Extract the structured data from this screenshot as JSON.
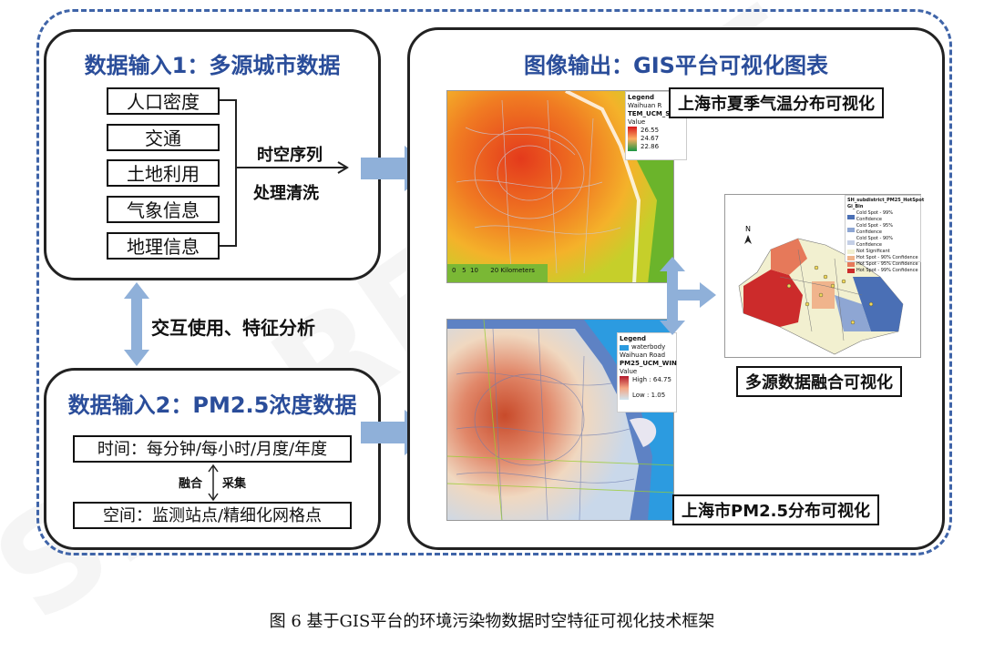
{
  "watermark": "SFC REPORT",
  "left_top": {
    "title": "数据输入1：多源城市数据",
    "items": [
      "人口密度",
      "交通",
      "土地利用",
      "气象信息",
      "地理信息"
    ],
    "process_line1": "时空序列",
    "process_line2": "处理清洗"
  },
  "interaction_label": "交互使用、特征分析",
  "left_bottom": {
    "title": "数据输入2：PM2.5浓度数据",
    "time_box": "时间：每分钟/每小时/月度/年度",
    "fuse_label": "融合",
    "collect_label": "采集",
    "space_box": "空间：监测站点/精细化网格点"
  },
  "right": {
    "title": "图像输出：GIS平台可视化图表",
    "temp_caption": "上海市夏季气温分布可视化",
    "fusion_caption": "多源数据融合可视化",
    "pm_caption": "上海市PM2.5分布可视化",
    "temp_map": {
      "legend_title": "Legend",
      "legend_road": "Waihuan R",
      "layer_name": "TEM_UCM_Su",
      "value_label": "Value",
      "values": [
        "26.55",
        "24.67",
        "22.86"
      ],
      "scale": "0   5  10      20 Kilometers"
    },
    "pm_map": {
      "legend_title": "Legend",
      "waterbody": "waterbody",
      "road": "Waihuan Road",
      "layer_name": "PM25_UCM_WIN",
      "value_label": "Value",
      "high": "High : 64.75",
      "low": "Low : 1.05"
    },
    "hotspot_map": {
      "legend_title": "SH_subdistrict_PM25_HotSpot",
      "bin_label": "Gi_Bin",
      "entries": [
        "Cold Spot - 99% Confidence",
        "Cold Spot - 95% Confidence",
        "Cold Spot - 90% Confidence",
        "Not Significant",
        "Hot Spot - 90% Confidence",
        "Hot Spot - 95% Confidence",
        "Hot Spot - 99% Confidence"
      ],
      "entry_colors": [
        "#4a6fb5",
        "#8ea6d3",
        "#c4cfe6",
        "#f2f0d0",
        "#f0b48c",
        "#e6795a",
        "#cc2b2b"
      ]
    }
  },
  "figure_caption": "图 6 基于GIS平台的环境污染物数据时空特征可视化技术框架",
  "colors": {
    "title_blue": "#2a4d9a",
    "arrow_blue": "#8fb0d9",
    "dashed_border": "#3f64a8"
  }
}
